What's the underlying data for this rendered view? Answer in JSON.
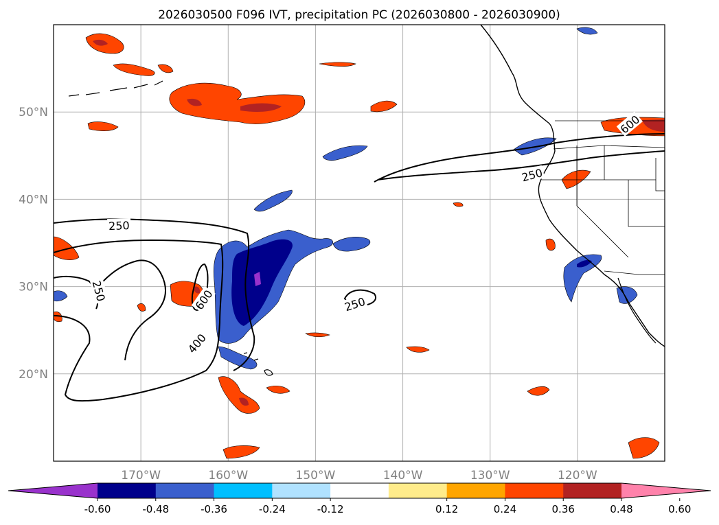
{
  "title": "2026030500 F096 IVT, precipitation PC (2026030800 - 2026030900)",
  "map": {
    "lon_range": [
      -180,
      -110
    ],
    "lat_range": [
      10,
      60
    ],
    "lat_ticks": [
      {
        "value": 20,
        "label": "20°N"
      },
      {
        "value": 30,
        "label": "30°N"
      },
      {
        "value": 40,
        "label": "40°N"
      },
      {
        "value": 50,
        "label": "50°N"
      }
    ],
    "lon_ticks": [
      {
        "value": -170,
        "label": "170°W"
      },
      {
        "value": -160,
        "label": "160°W"
      },
      {
        "value": -150,
        "label": "150°W"
      },
      {
        "value": -140,
        "label": "140°W"
      },
      {
        "value": -130,
        "label": "130°W"
      },
      {
        "value": -120,
        "label": "120°W"
      }
    ],
    "grid": true,
    "tick_label_color": "#808080",
    "ivt_contour_labels": [
      {
        "text": "250",
        "lon": -172.5,
        "lat": 37.0,
        "angle": -2
      },
      {
        "text": "250",
        "lon": -174.8,
        "lat": 29.5,
        "angle": 75
      },
      {
        "text": "600",
        "lon": -162.8,
        "lat": 28.5,
        "angle": -55
      },
      {
        "text": "400",
        "lon": -163.6,
        "lat": 23.5,
        "angle": -50
      },
      {
        "text": "250",
        "lon": -145.5,
        "lat": 28.0,
        "angle": -18
      },
      {
        "text": "250",
        "lon": -125.2,
        "lat": 42.8,
        "angle": -15
      },
      {
        "text": "600",
        "lon": -114.0,
        "lat": 48.6,
        "angle": -40
      }
    ]
  },
  "colorbar": {
    "levels": [
      "-0.60",
      "-0.48",
      "-0.36",
      "-0.24",
      "-0.12",
      "0.12",
      "0.24",
      "0.36",
      "0.48",
      "0.60"
    ],
    "colors": [
      "#9932cc",
      "#00008b",
      "#3a5fcd",
      "#00bfff",
      "#b0e2ff",
      "#ffffff",
      "#ffec8b",
      "#ffa500",
      "#ff4500",
      "#b22222",
      "#ff82ab"
    ]
  }
}
